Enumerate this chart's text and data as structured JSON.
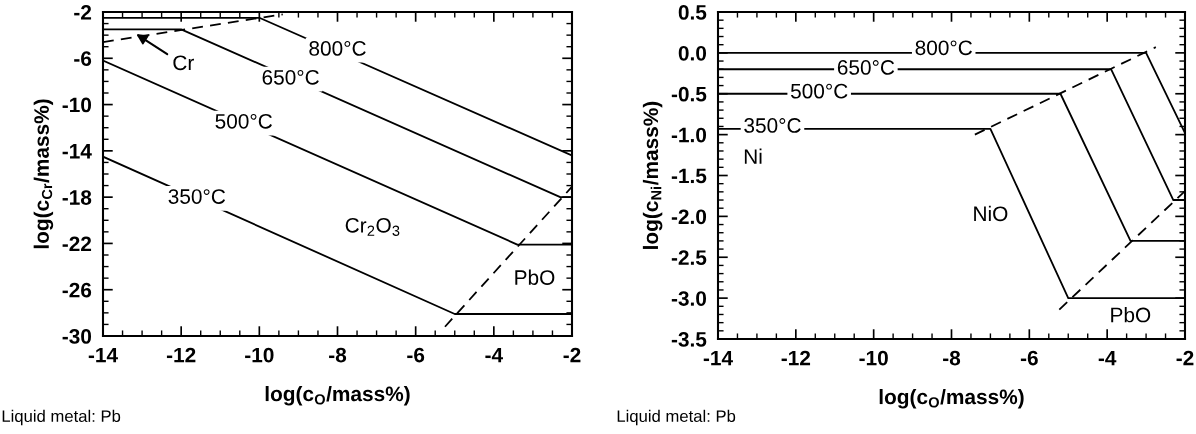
{
  "chart_data": [
    {
      "type": "line",
      "xlabel": "log(c$_{O}$/mass%)",
      "ylabel": "log(c$_{Cr}$/mass%)",
      "xlim": [
        -14,
        -2
      ],
      "ylim": [
        -30,
        -2
      ],
      "xticks": [
        -14,
        -12,
        -10,
        -8,
        -6,
        -4,
        -2
      ],
      "yticks": [
        -30,
        -26,
        -22,
        -18,
        -14,
        -10,
        -6,
        -2
      ],
      "line_style": "solid",
      "marker": "none",
      "grid": false,
      "legend": false,
      "series": [
        {
          "color": "#000000",
          "x": [
            -14,
            -10,
            -2
          ],
          "values": [
            -2.5,
            -2.5,
            -14.4
          ]
        },
        {
          "color": "#000000",
          "x": [
            -14,
            -12,
            -2.3,
            -2
          ],
          "values": [
            -3.5,
            -3.5,
            -18.0,
            -18.0
          ]
        },
        {
          "color": "#000000",
          "x": [
            -14,
            -3.4,
            -2
          ],
          "values": [
            -6.2,
            -22.1,
            -22.1
          ]
        },
        {
          "color": "#000000",
          "x": [
            -14,
            -5,
            -2
          ],
          "values": [
            -14.5,
            -28.1,
            -28.1
          ]
        },
        {
          "color": "#000000",
          "line_style": "dashed",
          "x": [
            -14,
            -9.4
          ],
          "values": [
            -4.6,
            -2.2
          ]
        },
        {
          "color": "#000000",
          "line_style": "dashed",
          "x": [
            -5.25,
            -2
          ],
          "values": [
            -29.2,
            -17.1
          ]
        }
      ],
      "annotations": [
        {
          "text": "800°C",
          "x": -8.0,
          "y": -5.3
        },
        {
          "text": "650°C",
          "x": -9.2,
          "y": -7.8
        },
        {
          "text": "500°C",
          "x": -10.4,
          "y": -11.6
        },
        {
          "text": "350°C",
          "x": -11.6,
          "y": -18.1
        },
        {
          "text": "Cr",
          "x": -13.15,
          "y": -3.9
        },
        "Cr$_{2}$O$_{3}$",
        "PbO",
        "Liquid metal: Pb"
      ]
    },
    {
      "type": "line",
      "xlabel": "log(c$_{O}$/mass%)",
      "ylabel": "log(c$_{Ni}$/mass%)",
      "xlim": [
        -14,
        -2
      ],
      "ylim": [
        -3.5,
        0.5
      ],
      "xticks": [
        -14,
        -12,
        -10,
        -8,
        -6,
        -4,
        -2
      ],
      "yticks": [
        {
          "value": -3.5,
          "label": "-3.5"
        },
        {
          "value": -3.0,
          "label": "-3.0"
        },
        {
          "value": -2.5,
          "label": "-2.5"
        },
        {
          "value": -2.0,
          "label": "-2.0"
        },
        {
          "value": -1.5,
          "label": "-1.5"
        },
        {
          "value": -1.0,
          "label": "-1.0"
        },
        {
          "value": -0.5,
          "label": "-0.5"
        },
        {
          "value": 0.0,
          "label": "0.0"
        },
        {
          "value": 0.5,
          "label": "0.5"
        }
      ],
      "line_style": "solid",
      "marker": "none",
      "grid": false,
      "legend": false,
      "series": [
        {
          "color": "#000000",
          "x": [
            -14,
            -3,
            -2
          ],
          "values": [
            0.0,
            0.0,
            -0.98
          ]
        },
        {
          "color": "#000000",
          "x": [
            -14,
            -3.9,
            -2.3,
            -2
          ],
          "values": [
            -0.2,
            -0.2,
            -1.8,
            -1.8
          ]
        },
        {
          "color": "#000000",
          "x": [
            -14,
            -5.2,
            -3.4,
            -2
          ],
          "values": [
            -0.5,
            -0.5,
            -2.3,
            -2.3
          ]
        },
        {
          "color": "#000000",
          "x": [
            -14,
            -7.0,
            -5.0,
            -2
          ],
          "values": [
            -0.93,
            -0.93,
            -3.0,
            -3.0
          ]
        },
        {
          "color": "#000000",
          "line_style": "dashed",
          "x": [
            -7.4,
            -2.75
          ],
          "values": [
            -1.0,
            0.07
          ]
        },
        {
          "color": "#000000",
          "line_style": "dashed",
          "x": [
            -5.23,
            -2
          ],
          "values": [
            -3.14,
            -1.69
          ]
        }
      ],
      "annotations": [
        {
          "text": "800°C",
          "x": -8.2,
          "y": 0.04
        },
        {
          "text": "650°C",
          "x": -10.2,
          "y": -0.2
        },
        {
          "text": "500°C",
          "x": -11.4,
          "y": -0.49
        },
        {
          "text": "350°C",
          "x": -12.6,
          "y": -0.91
        },
        {
          "text": "Ni",
          "x": -13.1,
          "y": -1.29
        },
        {
          "text": "NiO",
          "x": -7.0,
          "y": -1.99
        },
        "PbO",
        "Liquid metal: Pb"
      ]
    }
  ]
}
